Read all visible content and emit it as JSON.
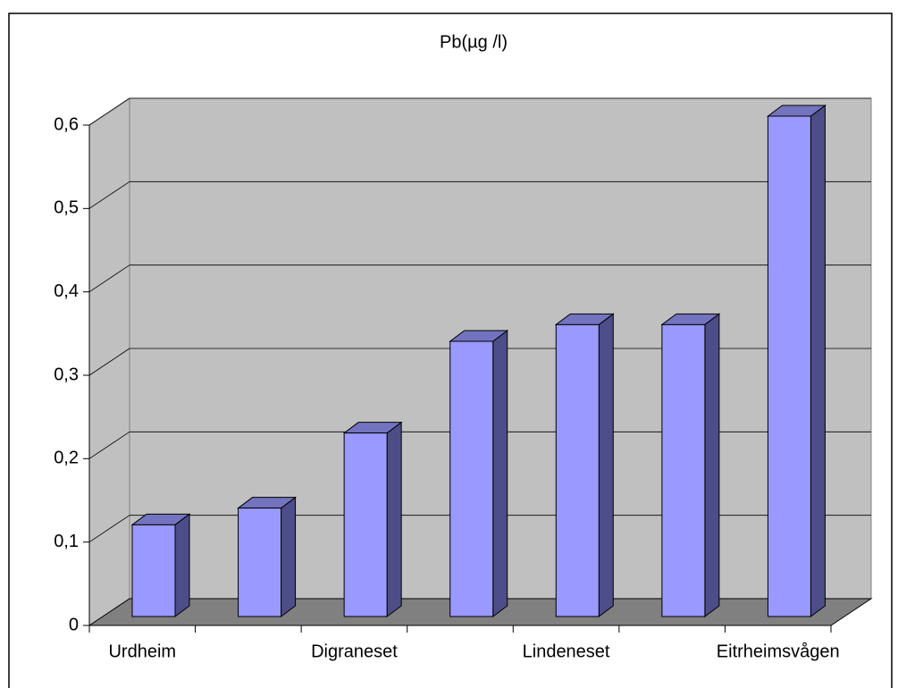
{
  "chart_data": {
    "type": "bar3d",
    "title": "Pb(µg /l)",
    "categories": [
      "Urdheim",
      null,
      "Digraneset",
      null,
      "Lindeneset",
      null,
      "Eitrheimsvågen"
    ],
    "values": [
      0.11,
      0.13,
      0.22,
      0.33,
      0.35,
      0.35,
      0.6
    ],
    "color": "#9999ff",
    "ylim": [
      0,
      0.6
    ],
    "yticks": [
      0,
      {
        "value": 0.1,
        "label": "0,1"
      },
      {
        "value": 0.2,
        "label": "0,2"
      },
      {
        "value": 0.3,
        "label": "0,3"
      },
      {
        "value": 0.4,
        "label": "0,4"
      },
      {
        "value": 0.5,
        "label": "0,5"
      },
      {
        "value": 0.6,
        "label": "0,6"
      }
    ],
    "grid": true
  }
}
